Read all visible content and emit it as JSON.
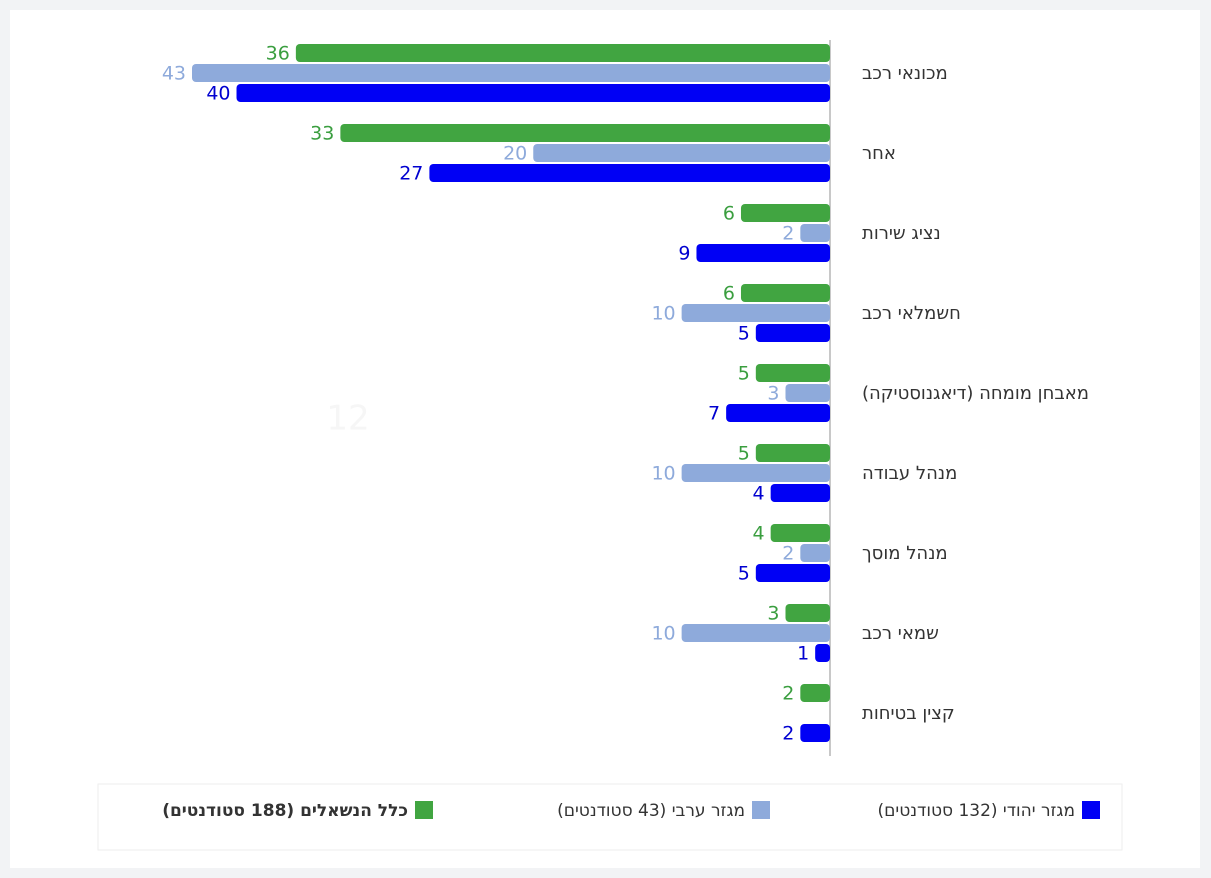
{
  "chart_data": {
    "type": "bar",
    "orientation": "horizontal",
    "categories": [
      "מכונאי רכב",
      "אחר",
      "נציג שירות",
      "חשמלאי רכב",
      "מאבחן מומחה (דיאגנוסטיקה)",
      "מנהל עבודה",
      "מנהל מוסך",
      "שמאי רכב",
      "קצין בטיחות"
    ],
    "series": [
      {
        "name": "כלל הנשאלים (188 סטודנטים)",
        "color": "#41a541",
        "label_color": "#3a9e3f",
        "values": [
          36,
          33,
          6,
          6,
          5,
          5,
          4,
          3,
          2
        ]
      },
      {
        "name": "מגזר ערבי (43 סטודנטים)",
        "color": "#8eaadb",
        "label_color": "#8eaadb",
        "values": [
          43,
          20,
          2,
          10,
          3,
          10,
          2,
          10,
          null
        ]
      },
      {
        "name": "מגזר יהודי (132 סטודנטים)",
        "color": "#0000f5",
        "label_color": "#0000d0",
        "values": [
          40,
          27,
          9,
          5,
          7,
          4,
          5,
          1,
          2
        ]
      }
    ],
    "xlim": [
      0,
      43
    ],
    "annotation": "12"
  }
}
